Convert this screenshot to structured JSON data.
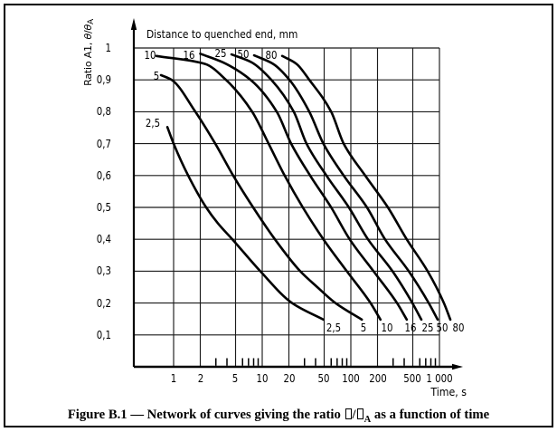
{
  "figure": {
    "caption_segments": [
      {
        "t": "Figure B.1 — Network of curves giving the ratio "
      },
      {
        "style": "tofu"
      },
      {
        "t": "/"
      },
      {
        "style": "tofu"
      },
      {
        "t": "A",
        "style": "sub"
      },
      {
        "t": " as a function of time"
      }
    ],
    "caption_text": "Figure B.1 — Network of curves giving the ratio □/□A as a function of time"
  },
  "chart_data": {
    "type": "line",
    "title": "Distance to quenched end, mm",
    "xlabel": "Time, s",
    "ylabel_segments": [
      {
        "t": "Ratio A1, "
      },
      {
        "t": "θ",
        "style": "italic"
      },
      {
        "t": "/"
      },
      {
        "t": "θ",
        "style": "italic"
      },
      {
        "t": "A",
        "style": "sub"
      }
    ],
    "x_scale": "log",
    "x_ticks": [
      1,
      2,
      5,
      10,
      20,
      50,
      100,
      200,
      500,
      1000
    ],
    "x_tick_labels": [
      "1",
      "2",
      "5",
      "10",
      "20",
      "50",
      "100",
      "200",
      "500",
      "1 000"
    ],
    "x_minor_ticks": [
      3,
      4,
      6,
      7,
      8,
      9,
      30,
      40,
      60,
      70,
      80,
      90,
      300,
      400,
      600,
      700,
      800,
      900
    ],
    "y_ticks": [
      1,
      0.9,
      0.8,
      0.7,
      0.6,
      0.5,
      0.4,
      0.3,
      0.2,
      0.1
    ],
    "y_tick_labels": [
      "1",
      "0,9",
      "0,8",
      "0,7",
      "0,6",
      "0,5",
      "0,4",
      "0,3",
      "0,2",
      "0,1"
    ],
    "ylim": [
      0,
      1
    ],
    "series": [
      {
        "name": "2,5",
        "points": [
          [
            0.85,
            0.752
          ],
          [
            1.0,
            0.7
          ],
          [
            1.46,
            0.6
          ],
          [
            2.33,
            0.5
          ],
          [
            3.16,
            0.45
          ],
          [
            4.6,
            0.4
          ],
          [
            9.5,
            0.3
          ],
          [
            21.7,
            0.2
          ],
          [
            49,
            0.148
          ]
        ]
      },
      {
        "name": "5",
        "points": [
          [
            0.72,
            0.915
          ],
          [
            0.95,
            0.9
          ],
          [
            1.76,
            0.8
          ],
          [
            2.95,
            0.7
          ],
          [
            4.7,
            0.6
          ],
          [
            7.9,
            0.5
          ],
          [
            13.9,
            0.4
          ],
          [
            26.8,
            0.3
          ],
          [
            41.8,
            0.25
          ],
          [
            67,
            0.2
          ],
          [
            133,
            0.148
          ]
        ]
      },
      {
        "name": "10",
        "points": [
          [
            0.64,
            0.975
          ],
          [
            2.27,
            0.95
          ],
          [
            3.9,
            0.9
          ],
          [
            7.7,
            0.8
          ],
          [
            11.8,
            0.7
          ],
          [
            17.9,
            0.6
          ],
          [
            28.7,
            0.5
          ],
          [
            49,
            0.4
          ],
          [
            90,
            0.3
          ],
          [
            167,
            0.2
          ],
          [
            216,
            0.148
          ]
        ]
      },
      {
        "name": "16",
        "points": [
          [
            2.0,
            0.982
          ],
          [
            3.6,
            0.955
          ],
          [
            7.4,
            0.9
          ],
          [
            14.6,
            0.8
          ],
          [
            21.2,
            0.7
          ],
          [
            34.7,
            0.6
          ],
          [
            60,
            0.5
          ],
          [
            97,
            0.4
          ],
          [
            180,
            0.3
          ],
          [
            332,
            0.2
          ],
          [
            428,
            0.148
          ]
        ]
      },
      {
        "name": "25",
        "points": [
          [
            4.5,
            0.98
          ],
          [
            7.6,
            0.955
          ],
          [
            12.7,
            0.9
          ],
          [
            22.7,
            0.8
          ],
          [
            31.6,
            0.7
          ],
          [
            53,
            0.6
          ],
          [
            95,
            0.5
          ],
          [
            156,
            0.4
          ],
          [
            295,
            0.3
          ],
          [
            495,
            0.2
          ],
          [
            625,
            0.148
          ]
        ]
      },
      {
        "name": "50",
        "points": [
          [
            8.1,
            0.977
          ],
          [
            13.3,
            0.95
          ],
          [
            20.3,
            0.9
          ],
          [
            34,
            0.8
          ],
          [
            49,
            0.7
          ],
          [
            83,
            0.6
          ],
          [
            152,
            0.5
          ],
          [
            243,
            0.4
          ],
          [
            450,
            0.3
          ],
          [
            757,
            0.2
          ],
          [
            955,
            0.148
          ]
        ]
      },
      {
        "name": "80",
        "points": [
          [
            16.8,
            0.975
          ],
          [
            24.4,
            0.95
          ],
          [
            34,
            0.9
          ],
          [
            60,
            0.8
          ],
          [
            83,
            0.7
          ],
          [
            145,
            0.6
          ],
          [
            262,
            0.5
          ],
          [
            427,
            0.4
          ],
          [
            735,
            0.3
          ],
          [
            1123,
            0.2
          ],
          [
            1327,
            0.148
          ]
        ]
      }
    ],
    "legend_position": "curve labels at start (top) and end (bottom) of each curve"
  }
}
